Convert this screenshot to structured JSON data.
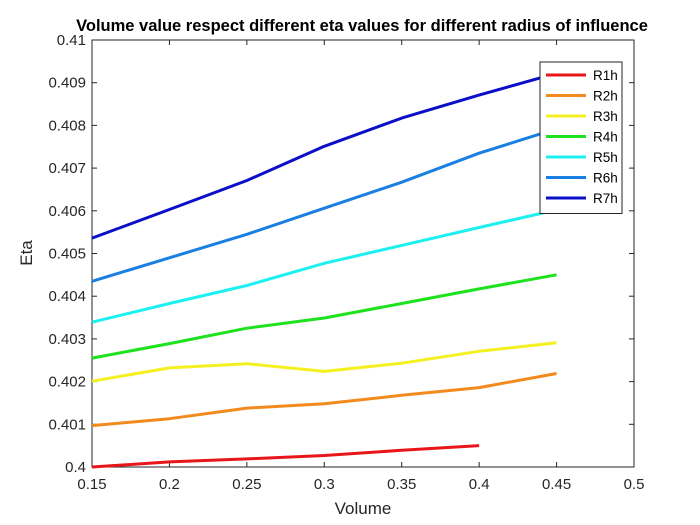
{
  "chart_data": {
    "type": "line",
    "title": "Volume value respect different eta values for different radius of influence",
    "xlabel": "Volume",
    "ylabel": "Eta",
    "xlim": [
      0.15,
      0.5
    ],
    "ylim": [
      0.4,
      0.41
    ],
    "xticks": [
      "0.15",
      "0.2",
      "0.25",
      "0.3",
      "0.35",
      "0.4",
      "0.45",
      "0.5"
    ],
    "yticks": [
      "0.4",
      "0.401",
      "0.402",
      "0.403",
      "0.404",
      "0.405",
      "0.406",
      "0.407",
      "0.408",
      "0.409",
      "0.41"
    ],
    "grid": false,
    "legend_position": "top-right",
    "series": [
      {
        "name": "R1h",
        "color": "#e8151b",
        "x": [
          0.15,
          0.2,
          0.25,
          0.3,
          0.35,
          0.4
        ],
        "y": [
          0.4,
          0.40012,
          0.40019,
          0.40027,
          0.40039,
          0.4005
        ]
      },
      {
        "name": "R2h",
        "color": "#f28a1d",
        "x": [
          0.15,
          0.2,
          0.25,
          0.3,
          0.35,
          0.4,
          0.45
        ],
        "y": [
          0.40097,
          0.40113,
          0.40138,
          0.40148,
          0.40168,
          0.40186,
          0.40219
        ]
      },
      {
        "name": "R3h",
        "color": "#f5f020",
        "x": [
          0.15,
          0.2,
          0.25,
          0.3,
          0.35,
          0.4,
          0.45
        ],
        "y": [
          0.40201,
          0.40232,
          0.40242,
          0.40224,
          0.40243,
          0.40271,
          0.40291
        ]
      },
      {
        "name": "R4h",
        "color": "#1de21d",
        "x": [
          0.15,
          0.2,
          0.25,
          0.3,
          0.35,
          0.4,
          0.45
        ],
        "y": [
          0.40255,
          0.40289,
          0.40325,
          0.40349,
          0.40383,
          0.40417,
          0.4045
        ]
      },
      {
        "name": "R5h",
        "color": "#1df0f0",
        "x": [
          0.15,
          0.2,
          0.25,
          0.3,
          0.35,
          0.4,
          0.45
        ],
        "y": [
          0.40339,
          0.40383,
          0.40425,
          0.40477,
          0.40519,
          0.40561,
          0.40602
        ]
      },
      {
        "name": "R6h",
        "color": "#1a7fe2",
        "x": [
          0.15,
          0.2,
          0.25,
          0.3,
          0.35,
          0.4,
          0.45
        ],
        "y": [
          0.40435,
          0.4049,
          0.40545,
          0.40606,
          0.40667,
          0.40735,
          0.40792
        ]
      },
      {
        "name": "R7h",
        "color": "#0b0fc8",
        "x": [
          0.15,
          0.2,
          0.25,
          0.3,
          0.35,
          0.4,
          0.45
        ],
        "y": [
          0.40536,
          0.40603,
          0.40671,
          0.40751,
          0.40817,
          0.40871,
          0.40922
        ]
      }
    ]
  }
}
